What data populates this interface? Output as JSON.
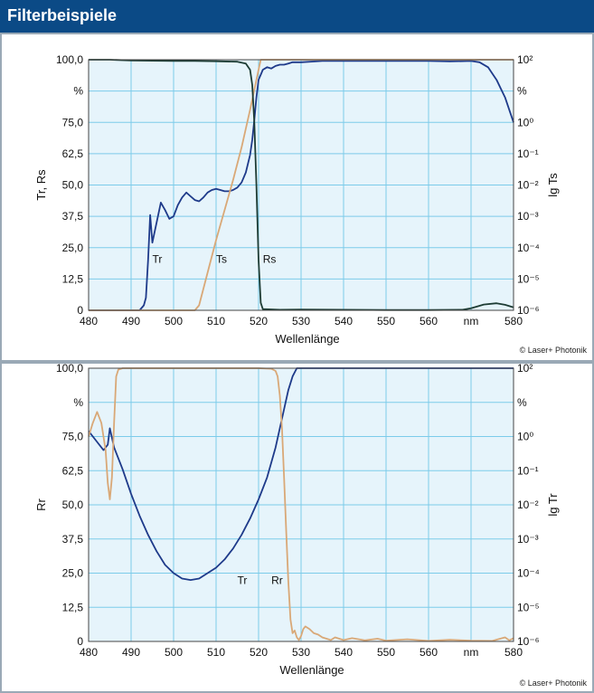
{
  "header": {
    "title": "Filterbeispiele"
  },
  "copyright": "© Laser+ Photonik",
  "colors": {
    "header_bg": "#0b4a86",
    "plot_bg": "#e6f4fb",
    "grid": "#7ccbea",
    "navy": "#1e3a8a",
    "tan": "#d9a877",
    "dark": "#1d3c34"
  },
  "chart_data": [
    {
      "type": "line",
      "xlabel": "Wellenlänge",
      "ylabel": "Tr, Rs",
      "y2label": "lg Ts",
      "xlim": [
        480,
        580
      ],
      "ylim": [
        0,
        100
      ],
      "x_ticks": [
        "480",
        "490",
        "500",
        "510",
        "520",
        "530",
        "540",
        "550",
        "560",
        "nm",
        "580"
      ],
      "y_ticks": [
        "0",
        "12,5",
        "25,0",
        "37,5",
        "50,0",
        "62,5",
        "75,0",
        "%",
        "100,0"
      ],
      "y2_ticks": [
        "10⁻⁶",
        "10⁻⁵",
        "10⁻⁴",
        "10⁻³",
        "10⁻²",
        "10⁻¹",
        "10⁰",
        "%",
        "10²"
      ],
      "grid": true,
      "annotations": [
        {
          "text": "Tr",
          "x": 495,
          "y": 19
        },
        {
          "text": "Ts",
          "x": 510,
          "y": 19
        },
        {
          "text": "Rs",
          "x": 521,
          "y": 19
        }
      ],
      "series": [
        {
          "name": "Tr",
          "color": "navy",
          "x": [
            480,
            492,
            493,
            493.5,
            494,
            494.5,
            495,
            496,
            497,
            498,
            499,
            500,
            501,
            502,
            503,
            504,
            505,
            506,
            507,
            508,
            509,
            510,
            511,
            512,
            513,
            514,
            515,
            516,
            517,
            518,
            518.5,
            519,
            519.5,
            520,
            520.5,
            521,
            522,
            523,
            524,
            525,
            526,
            527,
            528,
            530,
            535,
            540,
            545,
            550,
            555,
            560,
            565,
            570,
            572,
            574,
            576,
            578,
            580
          ],
          "y": [
            0,
            0,
            2,
            5,
            20,
            38,
            27,
            35,
            43,
            40,
            36.5,
            37.5,
            42,
            45,
            47,
            45.5,
            44,
            43.5,
            45,
            47,
            48,
            48.5,
            48,
            47.5,
            47.5,
            48,
            49,
            51,
            55,
            62,
            68,
            76,
            85,
            92,
            94,
            96,
            97,
            96.5,
            97.5,
            98,
            98,
            98.5,
            99,
            99,
            99.5,
            99.5,
            99.5,
            99.5,
            99.5,
            99.5,
            99.3,
            99.5,
            99,
            97,
            92,
            85,
            75
          ]
        },
        {
          "name": "Ts",
          "color": "tan",
          "x": [
            480,
            505,
            506,
            508,
            510,
            512,
            514,
            516,
            518,
            519,
            520,
            520.5,
            580
          ],
          "y": [
            0,
            0,
            2,
            15,
            28,
            40,
            52,
            65,
            80,
            88,
            96,
            100,
            100
          ]
        },
        {
          "name": "Rs",
          "color": "dark",
          "x": [
            480,
            485,
            490,
            495,
            500,
            505,
            510,
            515,
            517,
            518,
            518.5,
            519,
            519.5,
            520,
            520.5,
            521,
            525,
            530,
            540,
            550,
            560,
            568,
            570,
            573,
            576,
            578,
            580
          ],
          "y": [
            100,
            100,
            99.7,
            99.6,
            99.5,
            99.5,
            99.4,
            99.2,
            98.5,
            96,
            90,
            75,
            50,
            20,
            3,
            0.5,
            0.2,
            0.3,
            0.2,
            0.1,
            0.1,
            0.2,
            0.8,
            2.3,
            2.8,
            2.2,
            1.2
          ]
        }
      ]
    },
    {
      "type": "line",
      "xlabel": "Wellenlänge",
      "ylabel": "Rr",
      "y2label": "lg Tr",
      "xlim": [
        480,
        580
      ],
      "ylim": [
        0,
        100
      ],
      "x_ticks": [
        "480",
        "490",
        "500",
        "510",
        "520",
        "530",
        "540",
        "550",
        "560",
        "nm",
        "580"
      ],
      "y_ticks": [
        "0",
        "12,5",
        "25,0",
        "37,5",
        "50,0",
        "62,5",
        "75,0",
        "%",
        "100,0"
      ],
      "y2_ticks": [
        "10⁻⁶",
        "10⁻⁵",
        "10⁻⁴",
        "10⁻³",
        "10⁻²",
        "10⁻¹",
        "10⁰",
        "%",
        "10²"
      ],
      "grid": true,
      "annotations": [
        {
          "text": "Tr",
          "x": 515,
          "y": 21
        },
        {
          "text": "Rr",
          "x": 523,
          "y": 21
        }
      ],
      "series": [
        {
          "name": "Tr",
          "color": "navy",
          "x": [
            480,
            482,
            483.5,
            484.5,
            485,
            486,
            488,
            490,
            492,
            494,
            496,
            498,
            500,
            502,
            504,
            506,
            508,
            510,
            512,
            514,
            516,
            518,
            520,
            522,
            524,
            525,
            526,
            527,
            528,
            529,
            580
          ],
          "y": [
            77,
            73,
            70,
            72,
            78,
            71,
            63,
            54,
            46,
            39,
            33,
            28,
            25,
            23,
            22.5,
            23,
            25,
            27,
            30,
            34,
            39,
            45,
            52,
            60,
            71,
            78,
            85,
            92,
            97,
            100,
            100
          ]
        },
        {
          "name": "Rr",
          "color": "tan",
          "x": [
            480,
            481,
            482,
            483,
            484,
            484.5,
            485,
            485.5,
            486,
            486.5,
            487,
            488,
            490,
            500,
            510,
            520,
            523,
            524,
            524.5,
            525,
            525.5,
            526,
            526.5,
            527,
            527.5,
            528,
            528.5,
            529,
            529.5,
            530,
            530.5,
            531,
            532,
            533,
            534,
            535,
            536,
            537,
            538,
            540,
            542,
            545,
            548,
            550,
            555,
            560,
            565,
            570,
            575,
            578,
            579,
            580
          ],
          "y": [
            75,
            80,
            84,
            80,
            70,
            58,
            52,
            60,
            80,
            97,
            99.5,
            100,
            100,
            100,
            100,
            100,
            99.8,
            99,
            97,
            90,
            78,
            60,
            40,
            22,
            8,
            3,
            4,
            1.5,
            0.5,
            2,
            4.5,
            5.5,
            4.5,
            3,
            2.5,
            1.5,
            1,
            0.5,
            1.5,
            0.5,
            1.2,
            0.4,
            1,
            0.3,
            0.8,
            0.2,
            0.6,
            0.3,
            0.2,
            1.5,
            0.4,
            1.2
          ]
        }
      ]
    }
  ]
}
